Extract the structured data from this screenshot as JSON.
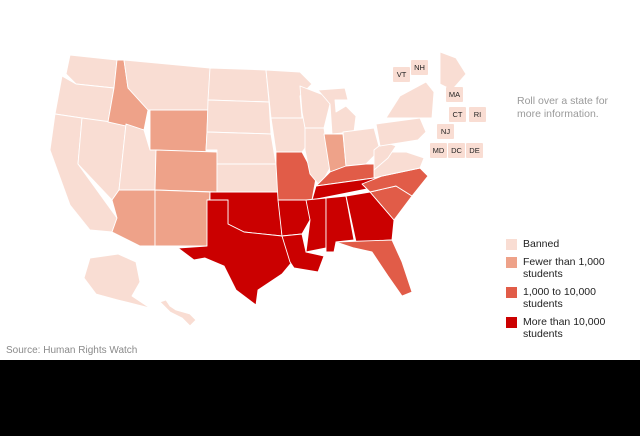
{
  "colors": {
    "banned": "#f9ddd3",
    "fewer_than_1000": "#eea289",
    "from_1000_to_10000": "#e15c48",
    "more_than_10000": "#cb0000"
  },
  "hint_text": "Roll over a state for more information.",
  "source_text": "Source: Human Rights Watch",
  "legend": [
    {
      "label": "Banned",
      "color": "#f9ddd3"
    },
    {
      "label": "Fewer than 1,000 students",
      "color": "#eea289"
    },
    {
      "label": "1,000 to 10,000 students",
      "color": "#e15c48"
    },
    {
      "label": "More than 10,000 students",
      "color": "#cb0000"
    }
  ],
  "small_states": [
    {
      "abbr": "VT",
      "category": "banned"
    },
    {
      "abbr": "NH",
      "category": "banned"
    },
    {
      "abbr": "MA",
      "category": "banned"
    },
    {
      "abbr": "CT",
      "category": "banned"
    },
    {
      "abbr": "RI",
      "category": "banned"
    },
    {
      "abbr": "NJ",
      "category": "banned"
    },
    {
      "abbr": "MD",
      "category": "banned"
    },
    {
      "abbr": "DC",
      "category": "banned"
    },
    {
      "abbr": "DE",
      "category": "banned"
    }
  ],
  "states": [
    {
      "abbr": "WA",
      "category": "banned"
    },
    {
      "abbr": "OR",
      "category": "banned"
    },
    {
      "abbr": "CA",
      "category": "banned"
    },
    {
      "abbr": "NV",
      "category": "banned"
    },
    {
      "abbr": "ID",
      "category": "fewer_than_1000"
    },
    {
      "abbr": "MT",
      "category": "banned"
    },
    {
      "abbr": "WY",
      "category": "fewer_than_1000"
    },
    {
      "abbr": "UT",
      "category": "banned"
    },
    {
      "abbr": "AZ",
      "category": "fewer_than_1000"
    },
    {
      "abbr": "CO",
      "category": "fewer_than_1000"
    },
    {
      "abbr": "NM",
      "category": "fewer_than_1000"
    },
    {
      "abbr": "ND",
      "category": "banned"
    },
    {
      "abbr": "SD",
      "category": "banned"
    },
    {
      "abbr": "NE",
      "category": "banned"
    },
    {
      "abbr": "KS",
      "category": "banned"
    },
    {
      "abbr": "OK",
      "category": "more_than_10000"
    },
    {
      "abbr": "TX",
      "category": "more_than_10000"
    },
    {
      "abbr": "MN",
      "category": "banned"
    },
    {
      "abbr": "IA",
      "category": "banned"
    },
    {
      "abbr": "MO",
      "category": "from_1000_to_10000"
    },
    {
      "abbr": "AR",
      "category": "more_than_10000"
    },
    {
      "abbr": "LA",
      "category": "more_than_10000"
    },
    {
      "abbr": "WI",
      "category": "banned"
    },
    {
      "abbr": "IL",
      "category": "banned"
    },
    {
      "abbr": "MI",
      "category": "banned"
    },
    {
      "abbr": "IN",
      "category": "fewer_than_1000"
    },
    {
      "abbr": "OH",
      "category": "banned"
    },
    {
      "abbr": "KY",
      "category": "from_1000_to_10000"
    },
    {
      "abbr": "TN",
      "category": "more_than_10000"
    },
    {
      "abbr": "MS",
      "category": "more_than_10000"
    },
    {
      "abbr": "AL",
      "category": "more_than_10000"
    },
    {
      "abbr": "GA",
      "category": "more_than_10000"
    },
    {
      "abbr": "FL",
      "category": "from_1000_to_10000"
    },
    {
      "abbr": "SC",
      "category": "from_1000_to_10000"
    },
    {
      "abbr": "NC",
      "category": "from_1000_to_10000"
    },
    {
      "abbr": "VA",
      "category": "banned"
    },
    {
      "abbr": "WV",
      "category": "banned"
    },
    {
      "abbr": "PA",
      "category": "banned"
    },
    {
      "abbr": "NY",
      "category": "banned"
    },
    {
      "abbr": "ME",
      "category": "banned"
    },
    {
      "abbr": "AK",
      "category": "banned"
    },
    {
      "abbr": "HI",
      "category": "banned"
    }
  ]
}
